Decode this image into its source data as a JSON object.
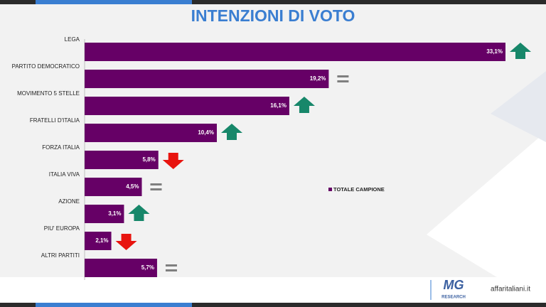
{
  "chart_data": {
    "type": "hbar",
    "title": "INTENZIONI DI VOTO",
    "categories": [
      "LEGA",
      "PARTITO DEMOCRATICO",
      "MOVIMENTO 5 STELLE",
      "FRATELLI D'ITALIA",
      "FORZA ITALIA",
      "ITALIA VIVA",
      "AZIONE",
      "PIU' EUROPA",
      "ALTRI PARTITI"
    ],
    "series": [
      {
        "name": "TOTALE CAMPIONE",
        "color": "#660066",
        "values": [
          33.1,
          19.2,
          16.1,
          10.4,
          5.8,
          4.5,
          3.1,
          2.1,
          5.7
        ],
        "value_labels": [
          "33,1%",
          "19,2%",
          "16,1%",
          "10,4%",
          "5,8%",
          "4,5%",
          "3,1%",
          "2,1%",
          "5,7%"
        ]
      }
    ],
    "trend": [
      "up",
      "equal",
      "up",
      "up",
      "down",
      "equal",
      "up",
      "down",
      "equal"
    ]
  },
  "footer": {
    "logo_mg": "MG",
    "logo_research": "RESEARCH",
    "logo_affaritaliani": "affaritaliani.it"
  }
}
